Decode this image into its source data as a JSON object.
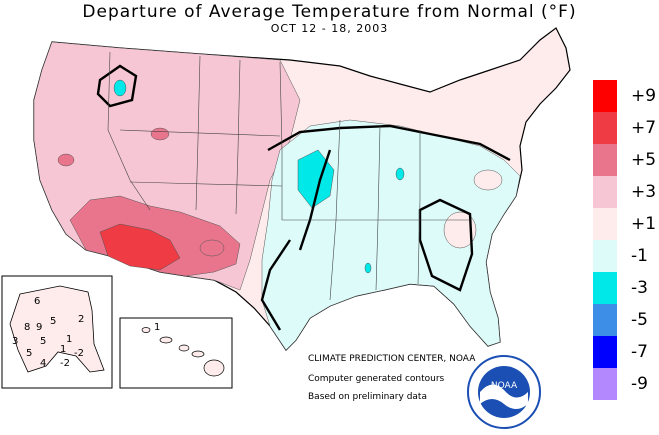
{
  "title": "Departure of Average Temperature from Normal (°F)",
  "subtitle": "OCT 12 - 18, 2003",
  "legend": [
    {
      "label": "+9",
      "color": "#ff0000"
    },
    {
      "label": "+7",
      "color": "#ee3b44"
    },
    {
      "label": "+5",
      "color": "#e8758c"
    },
    {
      "label": "+3",
      "color": "#f6c6d4"
    },
    {
      "label": "+1",
      "color": "#fdeceb"
    },
    {
      "label": "-1",
      "color": "#dcfbf9"
    },
    {
      "label": "-3",
      "color": "#00e8e8"
    },
    {
      "label": "-5",
      "color": "#3d8ee6"
    },
    {
      "label": "-7",
      "color": "#0000ff"
    },
    {
      "label": "-9",
      "color": "#b388ff"
    }
  ],
  "credits": {
    "org": "CLIMATE PREDICTION CENTER, NOAA",
    "line1": "Computer generated contours",
    "line2": "Based on preliminary data"
  },
  "logo": {
    "text": "NOAA"
  },
  "alaska_values": [
    "6",
    "2",
    "8",
    "9",
    "5",
    "1",
    "3",
    "5",
    "5",
    "1",
    "-2",
    "4",
    "-2"
  ],
  "hawaii_values": [
    "1"
  ]
}
